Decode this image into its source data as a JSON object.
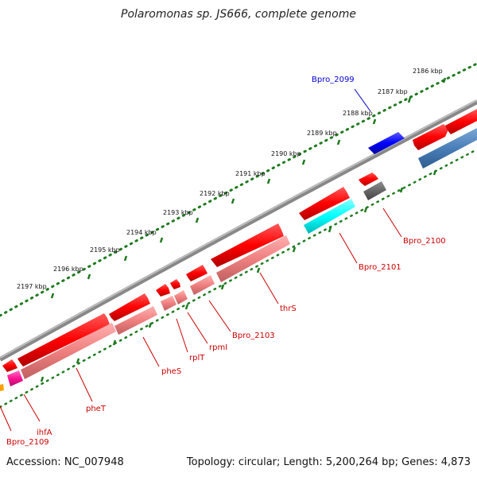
{
  "title": "Polaromonas sp. JS666, complete genome",
  "footer": {
    "accession": "Accession: NC_007948",
    "topology": "Topology: circular; Length: 5,200,264 bp; Genes: 4,873"
  },
  "colors": {
    "backbone": "#8a8a8a",
    "tick": "#1e7a1e",
    "gene_red": "#ff0000",
    "gene_pink": "#f08080",
    "label_red": "#cc0000",
    "label_blue": "#0000cc"
  },
  "ticks": [
    "2186 kbp",
    "2187 kbp",
    "2188 kbp",
    "2189 kbp",
    "2190 kbp",
    "2191 kbp",
    "2192 kbp",
    "2193 kbp",
    "2194 kbp",
    "2195 kbp",
    "2196 kbp",
    "2197 kbp"
  ],
  "gene_labels": [
    {
      "name": "Bpro_2099",
      "color": "blue"
    },
    {
      "name": "Bpro_2100",
      "color": "red"
    },
    {
      "name": "Bpro_2101",
      "color": "red"
    },
    {
      "name": "thrS",
      "color": "red"
    },
    {
      "name": "Bpro_2103",
      "color": "red"
    },
    {
      "name": "rpmI",
      "color": "red"
    },
    {
      "name": "rplT",
      "color": "red"
    },
    {
      "name": "pheS",
      "color": "red"
    },
    {
      "name": "pheT",
      "color": "red"
    },
    {
      "name": "ihfA",
      "color": "red"
    },
    {
      "name": "Bpro_2109",
      "color": "red"
    }
  ]
}
